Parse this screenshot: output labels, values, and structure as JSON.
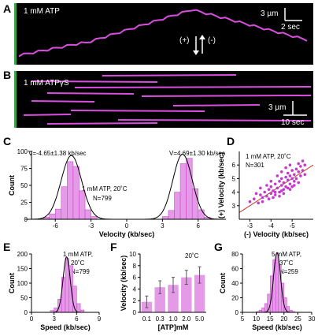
{
  "panels": {
    "A": {
      "letter": "A",
      "condition": "1 mM ATP",
      "scale_x": "2 sec",
      "scale_y": "3 µm",
      "plus": "(+)",
      "minus": "(-)"
    },
    "B": {
      "letter": "B",
      "condition": "1 mM ATPγS",
      "scale_x": "10 sec",
      "scale_y": "3 µm"
    },
    "C": {
      "letter": "C",
      "fit_left": "V=-4.65±1.38 kb/sec",
      "fit_right": "V=4.69±1.30 kb/sec",
      "note1": "1 mM ATP, 20˚C",
      "note2": "N=799"
    },
    "D": {
      "letter": "D",
      "note1": "1 mM ATP, 20˚C",
      "note2": "N=301"
    },
    "E": {
      "letter": "E",
      "note1": "1 mM ATP,",
      "note2": "20˚C",
      "note3": "N=799"
    },
    "F": {
      "letter": "F",
      "note1": "20˚C"
    },
    "G": {
      "letter": "G",
      "note1": "5 mM ATP,",
      "note2": "37˚C",
      "note3": "N=259"
    }
  },
  "colors": {
    "bar": "#e59ae8",
    "bar_dark": "#c23bc9",
    "kymo_bg": "#000000",
    "kymo_trace": "#d94de0",
    "fit": "#000000"
  },
  "chart_data": [
    {
      "id": "C",
      "type": "bar",
      "xlabel": "Velocity (kb/sec)",
      "ylabel": "Count",
      "xlim": [
        -8,
        8
      ],
      "ylim": [
        0,
        100
      ],
      "xticks": [
        -6,
        -3,
        0,
        3,
        6
      ],
      "yticks": [
        0,
        25,
        50,
        75,
        100
      ],
      "bin_width": 0.5,
      "bins": [
        -7.0,
        -6.5,
        -6.0,
        -5.5,
        -5.0,
        -4.5,
        -4.0,
        -3.5,
        -3.0,
        3.0,
        3.5,
        4.0,
        4.5,
        5.0,
        5.5,
        6.0,
        6.5
      ],
      "values": [
        3,
        8,
        15,
        48,
        85,
        78,
        42,
        14,
        4,
        4,
        13,
        40,
        82,
        90,
        45,
        14,
        3
      ],
      "fits": [
        {
          "mean": -4.65,
          "sd": 1.38,
          "peak": 94
        },
        {
          "mean": 4.69,
          "sd": 1.3,
          "peak": 96
        }
      ]
    },
    {
      "id": "D",
      "type": "scatter",
      "xlabel": "(-) Velocity (kb/sec)",
      "ylabel": "(+) Velocity (kb/sec)",
      "xlim": [
        -2.5,
        -6.0
      ],
      "ylim": [
        2,
        7
      ],
      "xticks": [
        -3,
        -4,
        -5
      ],
      "yticks": [
        3,
        4,
        5,
        6
      ],
      "points": [
        [
          -3.0,
          3.3
        ],
        [
          -3.2,
          3.5
        ],
        [
          -3.4,
          3.2
        ],
        [
          -3.5,
          3.8
        ],
        [
          -3.6,
          3.6
        ],
        [
          -3.7,
          4.0
        ],
        [
          -3.8,
          3.7
        ],
        [
          -3.9,
          4.2
        ],
        [
          -4.0,
          3.9
        ],
        [
          -4.0,
          4.4
        ],
        [
          -4.1,
          4.1
        ],
        [
          -4.2,
          4.6
        ],
        [
          -4.2,
          3.8
        ],
        [
          -4.3,
          4.3
        ],
        [
          -4.4,
          4.8
        ],
        [
          -4.4,
          4.0
        ],
        [
          -4.5,
          4.5
        ],
        [
          -4.5,
          5.0
        ],
        [
          -4.6,
          4.2
        ],
        [
          -4.6,
          4.7
        ],
        [
          -4.7,
          5.1
        ],
        [
          -4.7,
          4.4
        ],
        [
          -4.8,
          4.9
        ],
        [
          -4.8,
          5.4
        ],
        [
          -4.9,
          4.6
        ],
        [
          -4.9,
          5.2
        ],
        [
          -5.0,
          5.0
        ],
        [
          -5.0,
          5.6
        ],
        [
          -5.1,
          4.8
        ],
        [
          -5.1,
          5.3
        ],
        [
          -5.2,
          5.7
        ],
        [
          -5.2,
          5.0
        ],
        [
          -5.3,
          5.5
        ],
        [
          -5.4,
          5.2
        ],
        [
          -5.4,
          5.9
        ],
        [
          -5.5,
          5.6
        ],
        [
          -5.6,
          6.0
        ],
        [
          -5.6,
          5.3
        ],
        [
          -3.3,
          3.9
        ],
        [
          -3.5,
          4.3
        ],
        [
          -3.8,
          4.5
        ],
        [
          -4.0,
          4.8
        ],
        [
          -4.3,
          5.2
        ],
        [
          -4.5,
          5.5
        ],
        [
          -4.7,
          5.8
        ],
        [
          -4.9,
          6.0
        ],
        [
          -4.1,
          3.6
        ],
        [
          -4.4,
          3.7
        ],
        [
          -4.6,
          3.9
        ],
        [
          -4.9,
          4.2
        ],
        [
          -5.1,
          4.5
        ],
        [
          -5.3,
          4.7
        ],
        [
          -3.6,
          3.3
        ],
        [
          -3.9,
          3.5
        ],
        [
          -4.2,
          4.0
        ],
        [
          -4.5,
          4.1
        ],
        [
          -4.8,
          4.3
        ],
        [
          -5.0,
          4.4
        ],
        [
          -5.3,
          6.1
        ],
        [
          -5.5,
          6.3
        ]
      ],
      "fit_line": [
        [
          -2.5,
          2.5
        ],
        [
          -6.0,
          6.0
        ]
      ]
    },
    {
      "id": "E",
      "type": "bar",
      "xlabel": "Speed (kb/sec)",
      "ylabel": "Count",
      "xlim": [
        0,
        9
      ],
      "ylim": [
        0,
        200
      ],
      "xticks": [
        0,
        3,
        6,
        9
      ],
      "yticks": [
        0,
        50,
        100,
        150,
        200
      ],
      "bin_width": 0.5,
      "bins": [
        2.5,
        3.0,
        3.5,
        4.0,
        4.5,
        5.0,
        5.5,
        6.0,
        6.5
      ],
      "values": [
        6,
        15,
        45,
        120,
        185,
        160,
        90,
        30,
        8
      ],
      "fits": [
        {
          "mean": 4.67,
          "sd": 0.75,
          "peak": 190
        }
      ]
    },
    {
      "id": "F",
      "type": "bar",
      "xlabel": "[ATP]mM",
      "ylabel": "Velocity (kb/sec)",
      "ylim": [
        0,
        10
      ],
      "yticks": [
        0,
        2,
        4,
        6,
        8,
        10
      ],
      "categories": [
        "0.1",
        "0.3",
        "1.0",
        "2.0",
        "5.0"
      ],
      "values": [
        1.8,
        4.3,
        4.7,
        6.0,
        6.4
      ],
      "errors": [
        1.0,
        1.1,
        1.3,
        1.2,
        1.4
      ]
    },
    {
      "id": "G",
      "type": "bar",
      "xlabel": "Speed (kb/sec)",
      "ylabel": "Count",
      "xlim": [
        5,
        30
      ],
      "ylim": [
        0,
        80
      ],
      "xticks": [
        5,
        10,
        15,
        20,
        25,
        30
      ],
      "yticks": [
        0,
        20,
        40,
        60,
        80
      ],
      "bin_width": 1,
      "bins": [
        10,
        11,
        12,
        13,
        14,
        15,
        16,
        17,
        18,
        19,
        20,
        21,
        22,
        23
      ],
      "values": [
        1,
        3,
        6,
        12,
        25,
        50,
        72,
        80,
        65,
        40,
        20,
        8,
        3,
        1
      ],
      "fits": [
        {
          "mean": 17.5,
          "sd": 2.0,
          "peak": 82
        }
      ]
    }
  ]
}
